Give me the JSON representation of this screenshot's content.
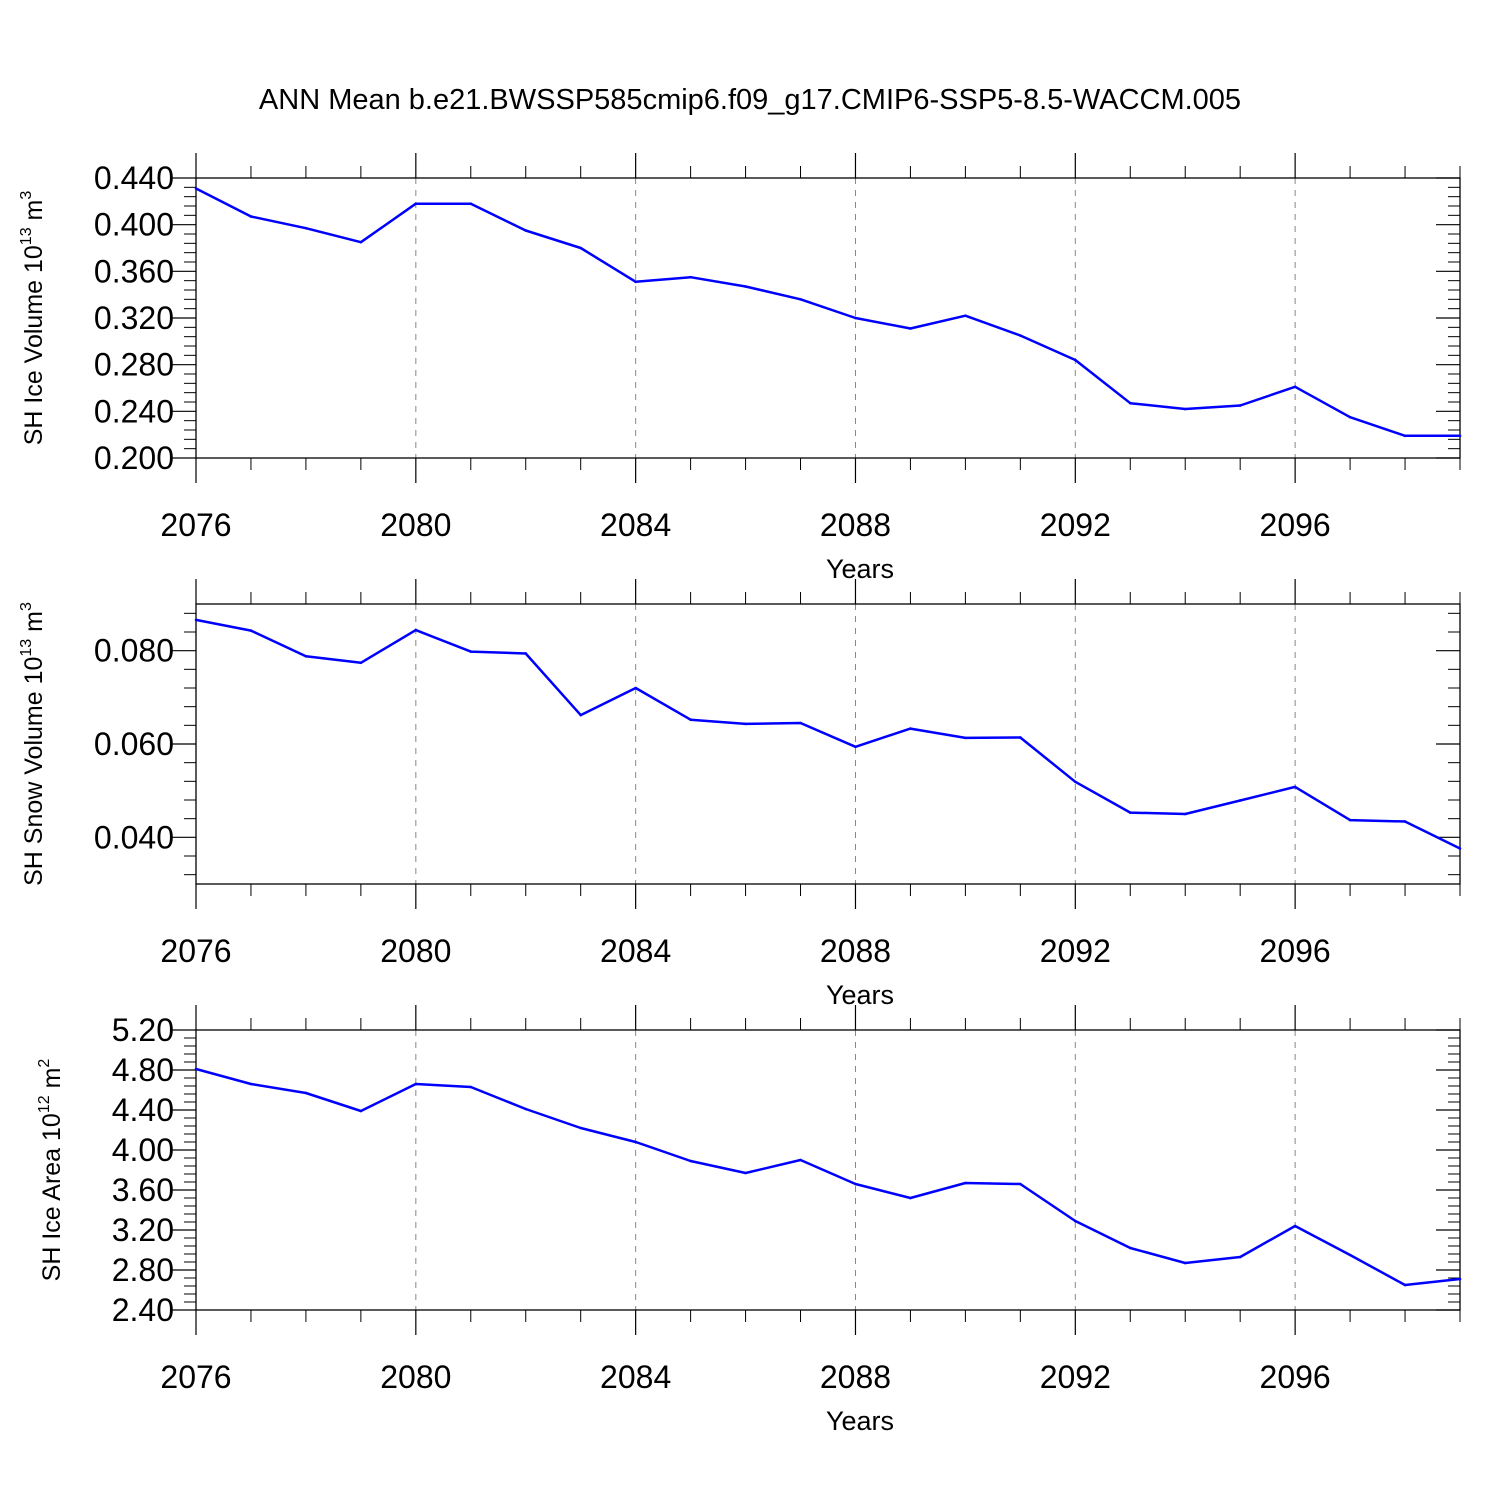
{
  "title": "ANN Mean b.e21.BWSSP585cmip6.f09_g17.CMIP6-SSP5-8.5-WACCM.005",
  "colors": {
    "series": "#0000ff",
    "axis": "#000000",
    "grid": "#888888"
  },
  "chart_data": [
    {
      "type": "line",
      "ylabel": "SH Ice Volume 10",
      "ylabel_exp": "13",
      "ylabel_unit": " m",
      "ylabel_unit_exp": "3",
      "xlabel": "Years",
      "xlim": [
        2076,
        2099
      ],
      "ylim": [
        0.2,
        0.44
      ],
      "xticks": [
        2076,
        2080,
        2084,
        2088,
        2092,
        2096
      ],
      "xtick_labels": [
        "2076",
        "2080",
        "2084",
        "2088",
        "2092",
        "2096"
      ],
      "yticks": [
        0.2,
        0.24,
        0.28,
        0.32,
        0.36,
        0.4,
        0.44
      ],
      "ytick_labels": [
        "0.200",
        "0.240",
        "0.280",
        "0.320",
        "0.360",
        "0.400",
        "0.440"
      ],
      "grid": "vertical dashed at major x ticks",
      "x": [
        2076,
        2077,
        2078,
        2079,
        2080,
        2081,
        2082,
        2083,
        2084,
        2085,
        2086,
        2087,
        2088,
        2089,
        2090,
        2091,
        2092,
        2093,
        2094,
        2095,
        2096,
        2097,
        2098,
        2099
      ],
      "values": [
        0.431,
        0.407,
        0.397,
        0.385,
        0.418,
        0.418,
        0.395,
        0.38,
        0.351,
        0.355,
        0.347,
        0.336,
        0.32,
        0.311,
        0.322,
        0.305,
        0.284,
        0.247,
        0.242,
        0.245,
        0.261,
        0.235,
        0.219,
        0.219
      ]
    },
    {
      "type": "line",
      "ylabel": "SH Snow Volume 10",
      "ylabel_exp": "13",
      "ylabel_unit": " m",
      "ylabel_unit_exp": "3",
      "xlabel": "Years",
      "xlim": [
        2076,
        2099
      ],
      "ylim": [
        0.03,
        0.09
      ],
      "xticks": [
        2076,
        2080,
        2084,
        2088,
        2092,
        2096
      ],
      "xtick_labels": [
        "2076",
        "2080",
        "2084",
        "2088",
        "2092",
        "2096"
      ],
      "yticks": [
        0.04,
        0.06,
        0.08
      ],
      "ytick_labels": [
        "0.040",
        "0.060",
        "0.080"
      ],
      "grid": "vertical dashed at major x ticks",
      "x": [
        2076,
        2077,
        2078,
        2079,
        2080,
        2081,
        2082,
        2083,
        2084,
        2085,
        2086,
        2087,
        2088,
        2089,
        2090,
        2091,
        2092,
        2093,
        2094,
        2095,
        2096,
        2097,
        2098,
        2099
      ],
      "values": [
        0.0866,
        0.0843,
        0.0788,
        0.0774,
        0.0844,
        0.0798,
        0.0794,
        0.0662,
        0.072,
        0.0652,
        0.0643,
        0.0645,
        0.0594,
        0.0633,
        0.0613,
        0.0614,
        0.0519,
        0.0453,
        0.045,
        0.0479,
        0.0508,
        0.0437,
        0.0434,
        0.0376
      ]
    },
    {
      "type": "line",
      "ylabel": "SH Ice Area 10",
      "ylabel_exp": "12",
      "ylabel_unit": " m",
      "ylabel_unit_exp": "2",
      "xlabel": "Years",
      "xlim": [
        2076,
        2099
      ],
      "ylim": [
        2.4,
        5.2
      ],
      "xticks": [
        2076,
        2080,
        2084,
        2088,
        2092,
        2096
      ],
      "xtick_labels": [
        "2076",
        "2080",
        "2084",
        "2088",
        "2092",
        "2096"
      ],
      "yticks": [
        2.4,
        2.8,
        3.2,
        3.6,
        4.0,
        4.4,
        4.8,
        5.2
      ],
      "ytick_labels": [
        "2.40",
        "2.80",
        "3.20",
        "3.60",
        "4.00",
        "4.40",
        "4.80",
        "5.20"
      ],
      "grid": "vertical dashed at major x ticks",
      "x": [
        2076,
        2077,
        2078,
        2079,
        2080,
        2081,
        2082,
        2083,
        2084,
        2085,
        2086,
        2087,
        2088,
        2089,
        2090,
        2091,
        2092,
        2093,
        2094,
        2095,
        2096,
        2097,
        2098,
        2099
      ],
      "values": [
        4.81,
        4.66,
        4.57,
        4.39,
        4.66,
        4.63,
        4.41,
        4.22,
        4.08,
        3.89,
        3.77,
        3.9,
        3.66,
        3.52,
        3.67,
        3.66,
        3.29,
        3.02,
        2.87,
        2.93,
        3.24,
        2.95,
        2.65,
        2.71
      ]
    }
  ]
}
